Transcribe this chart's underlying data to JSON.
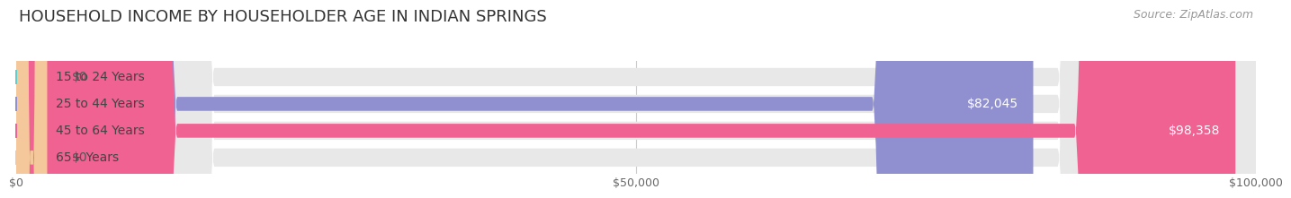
{
  "title": "HOUSEHOLD INCOME BY HOUSEHOLDER AGE IN INDIAN SPRINGS",
  "source": "Source: ZipAtlas.com",
  "categories": [
    "15 to 24 Years",
    "25 to 44 Years",
    "45 to 64 Years",
    "65+ Years"
  ],
  "values": [
    0,
    82045,
    98358,
    0
  ],
  "bar_colors": [
    "#5ecfca",
    "#9090d0",
    "#f06292",
    "#f4c89a"
  ],
  "label_colors": [
    "#555555",
    "#ffffff",
    "#ffffff",
    "#555555"
  ],
  "value_labels": [
    "$0",
    "$82,045",
    "$98,358",
    "$0"
  ],
  "xlim": [
    0,
    100000
  ],
  "xticks": [
    0,
    50000,
    100000
  ],
  "xticklabels": [
    "$0",
    "$50,000",
    "$100,000"
  ],
  "title_fontsize": 13,
  "source_fontsize": 9,
  "label_fontsize": 10,
  "value_fontsize": 10,
  "background_color": "#ffffff",
  "bar_background": "#e8e8e8"
}
